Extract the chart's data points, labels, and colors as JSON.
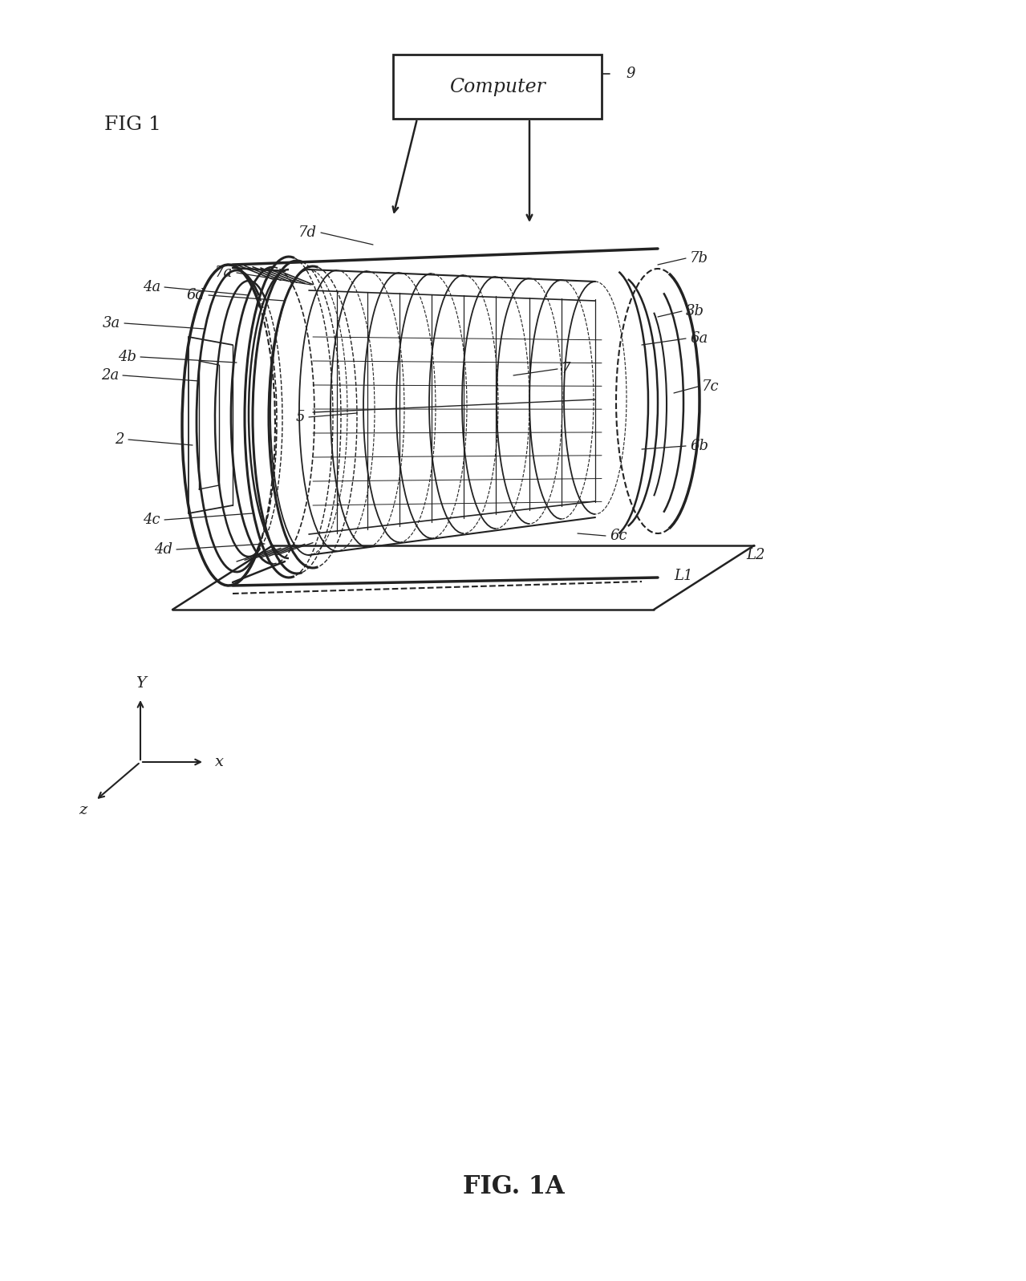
{
  "bg_color": "#ffffff",
  "line_color": "#222222",
  "fig_label": "FIG 1",
  "fig_caption": "FIG. 1A",
  "computer_label": "Computer",
  "ref_9": "9",
  "figsize": [
    12.79,
    15.97
  ],
  "dpi": 100
}
